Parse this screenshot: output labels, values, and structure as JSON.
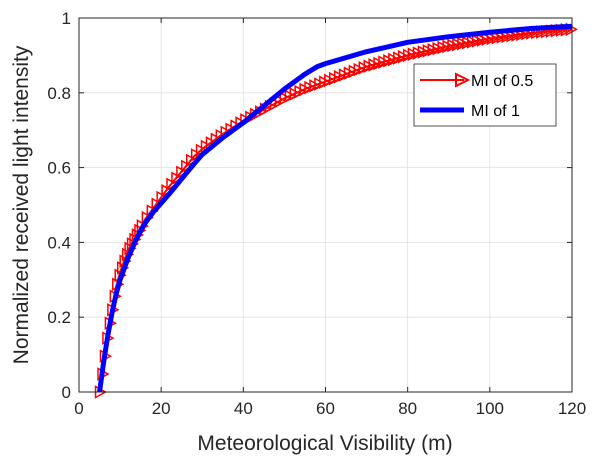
{
  "chart_data": {
    "type": "line",
    "xlabel": "Meteorological Visibility (m)",
    "ylabel": "Normalized received light intensity",
    "xlim": [
      0,
      120
    ],
    "ylim": [
      0,
      1
    ],
    "xticks": [
      0,
      20,
      40,
      60,
      80,
      100,
      120
    ],
    "yticks": [
      0,
      0.2,
      0.4,
      0.6,
      0.8,
      1
    ],
    "xtick_labels": [
      "0",
      "20",
      "40",
      "60",
      "80",
      "100",
      "120"
    ],
    "ytick_labels": [
      "0",
      "0.2",
      "0.4",
      "0.6",
      "0.8",
      "1"
    ],
    "grid": true,
    "box": true,
    "legend_position": "top-right",
    "series": [
      {
        "name": "MI of 0.5",
        "color": "#ff0000",
        "marker": "triangle-right",
        "x": [
          5,
          5.5,
          6,
          7,
          8,
          9,
          10,
          12,
          14,
          16,
          18,
          20,
          22,
          25,
          28,
          30,
          35,
          40,
          45,
          50,
          55,
          60,
          70,
          80,
          90,
          100,
          110,
          120
        ],
        "y": [
          0,
          0.04,
          0.08,
          0.16,
          0.22,
          0.28,
          0.32,
          0.38,
          0.42,
          0.46,
          0.49,
          0.52,
          0.55,
          0.59,
          0.63,
          0.65,
          0.69,
          0.725,
          0.755,
          0.785,
          0.81,
          0.83,
          0.87,
          0.9,
          0.925,
          0.945,
          0.96,
          0.97
        ]
      },
      {
        "name": "MI of 1",
        "color": "#0000ff",
        "marker": "none",
        "x": [
          5,
          5.5,
          6,
          7,
          8,
          9,
          10,
          12,
          14,
          16,
          18,
          20,
          22,
          25,
          28,
          30,
          35,
          40,
          45,
          50,
          55,
          58,
          60,
          70,
          80,
          90,
          100,
          110,
          120
        ],
        "y": [
          0,
          0.04,
          0.08,
          0.15,
          0.21,
          0.26,
          0.3,
          0.36,
          0.41,
          0.45,
          0.48,
          0.505,
          0.53,
          0.57,
          0.61,
          0.635,
          0.68,
          0.72,
          0.765,
          0.81,
          0.85,
          0.87,
          0.878,
          0.91,
          0.935,
          0.95,
          0.962,
          0.972,
          0.978
        ]
      }
    ]
  }
}
